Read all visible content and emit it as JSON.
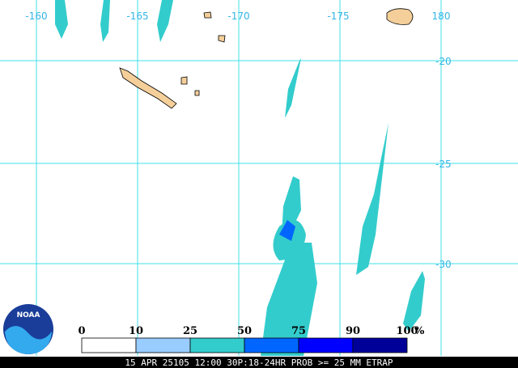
{
  "map": {
    "lon_labels": [
      "-160",
      "-165",
      "-170",
      "-175",
      "180"
    ],
    "lat_labels": [
      "-20",
      "-25",
      "-30"
    ]
  },
  "legend": {
    "ticks": [
      "0",
      "10",
      "25",
      "50",
      "75",
      "90",
      "100"
    ],
    "unit": "%",
    "colors": [
      "#ffffff",
      "#99ccff",
      "#33cccc",
      "#0066ff",
      "#0000ff",
      "#000099"
    ]
  },
  "logo": "NOAA",
  "footer": "15 APR 25105 12:00 30P:18-24HR PROB >= 25 MM ETRAP"
}
